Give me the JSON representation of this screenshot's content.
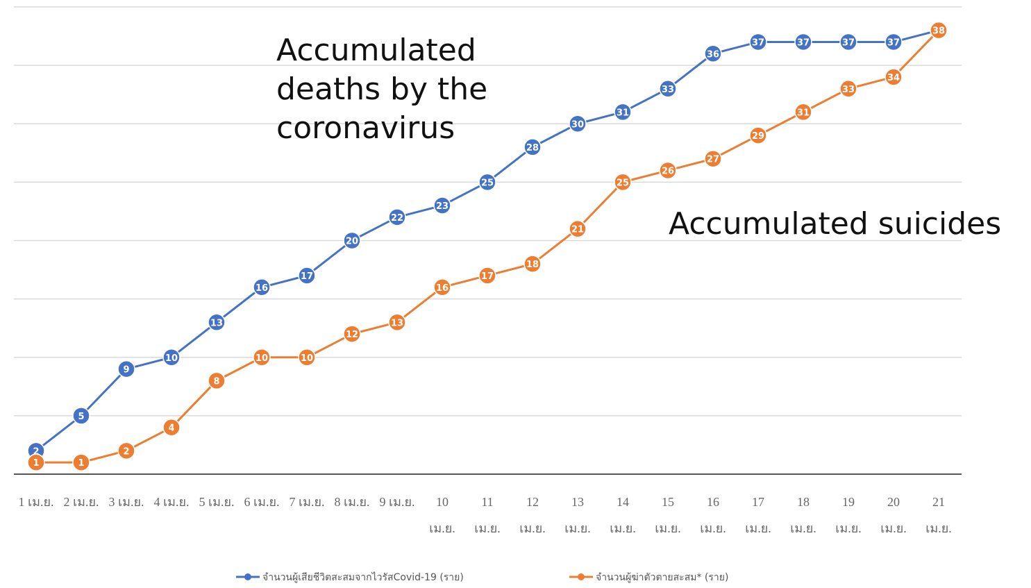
{
  "chart_data": {
    "type": "line",
    "annotations": [
      "Accumulated deaths by the coronavirus",
      "Accumulated suicides"
    ],
    "categories": [
      "1 เม.ย.",
      "2 เม.ย.",
      "3 เม.ย.",
      "4 เม.ย.",
      "5 เม.ย.",
      "6 เม.ย.",
      "7 เม.ย.",
      "8 เม.ย.",
      "9 เม.ย.",
      "10 เม.ย.",
      "11 เม.ย.",
      "12 เม.ย.",
      "13 เม.ย.",
      "14 เม.ย.",
      "15 เม.ย.",
      "16 เม.ย.",
      "17 เม.ย.",
      "18 เม.ย.",
      "19 เม.ย.",
      "20 เม.ย.",
      "21 เม.ย."
    ],
    "series": [
      {
        "name": "จำนวนผู้เสียชีวิตสะสมจากไวรัสCovid-19 (ราย)",
        "color": "#4472c4",
        "values": [
          2,
          5,
          9,
          10,
          13,
          16,
          17,
          20,
          22,
          23,
          25,
          28,
          30,
          31,
          33,
          36,
          37,
          37,
          37,
          37,
          38
        ]
      },
      {
        "name": "จำนวนผู้ฆ่าตัวตายสะสม* (ราย)",
        "color": "#ed7d31",
        "values": [
          1,
          1,
          2,
          4,
          8,
          10,
          10,
          12,
          13,
          16,
          17,
          18,
          21,
          25,
          26,
          27,
          29,
          31,
          33,
          34,
          38
        ]
      }
    ],
    "ylim": [
      0,
      40
    ],
    "yticks": [
      0,
      5,
      10,
      15,
      20,
      25,
      30,
      35,
      40
    ],
    "grid": true
  }
}
